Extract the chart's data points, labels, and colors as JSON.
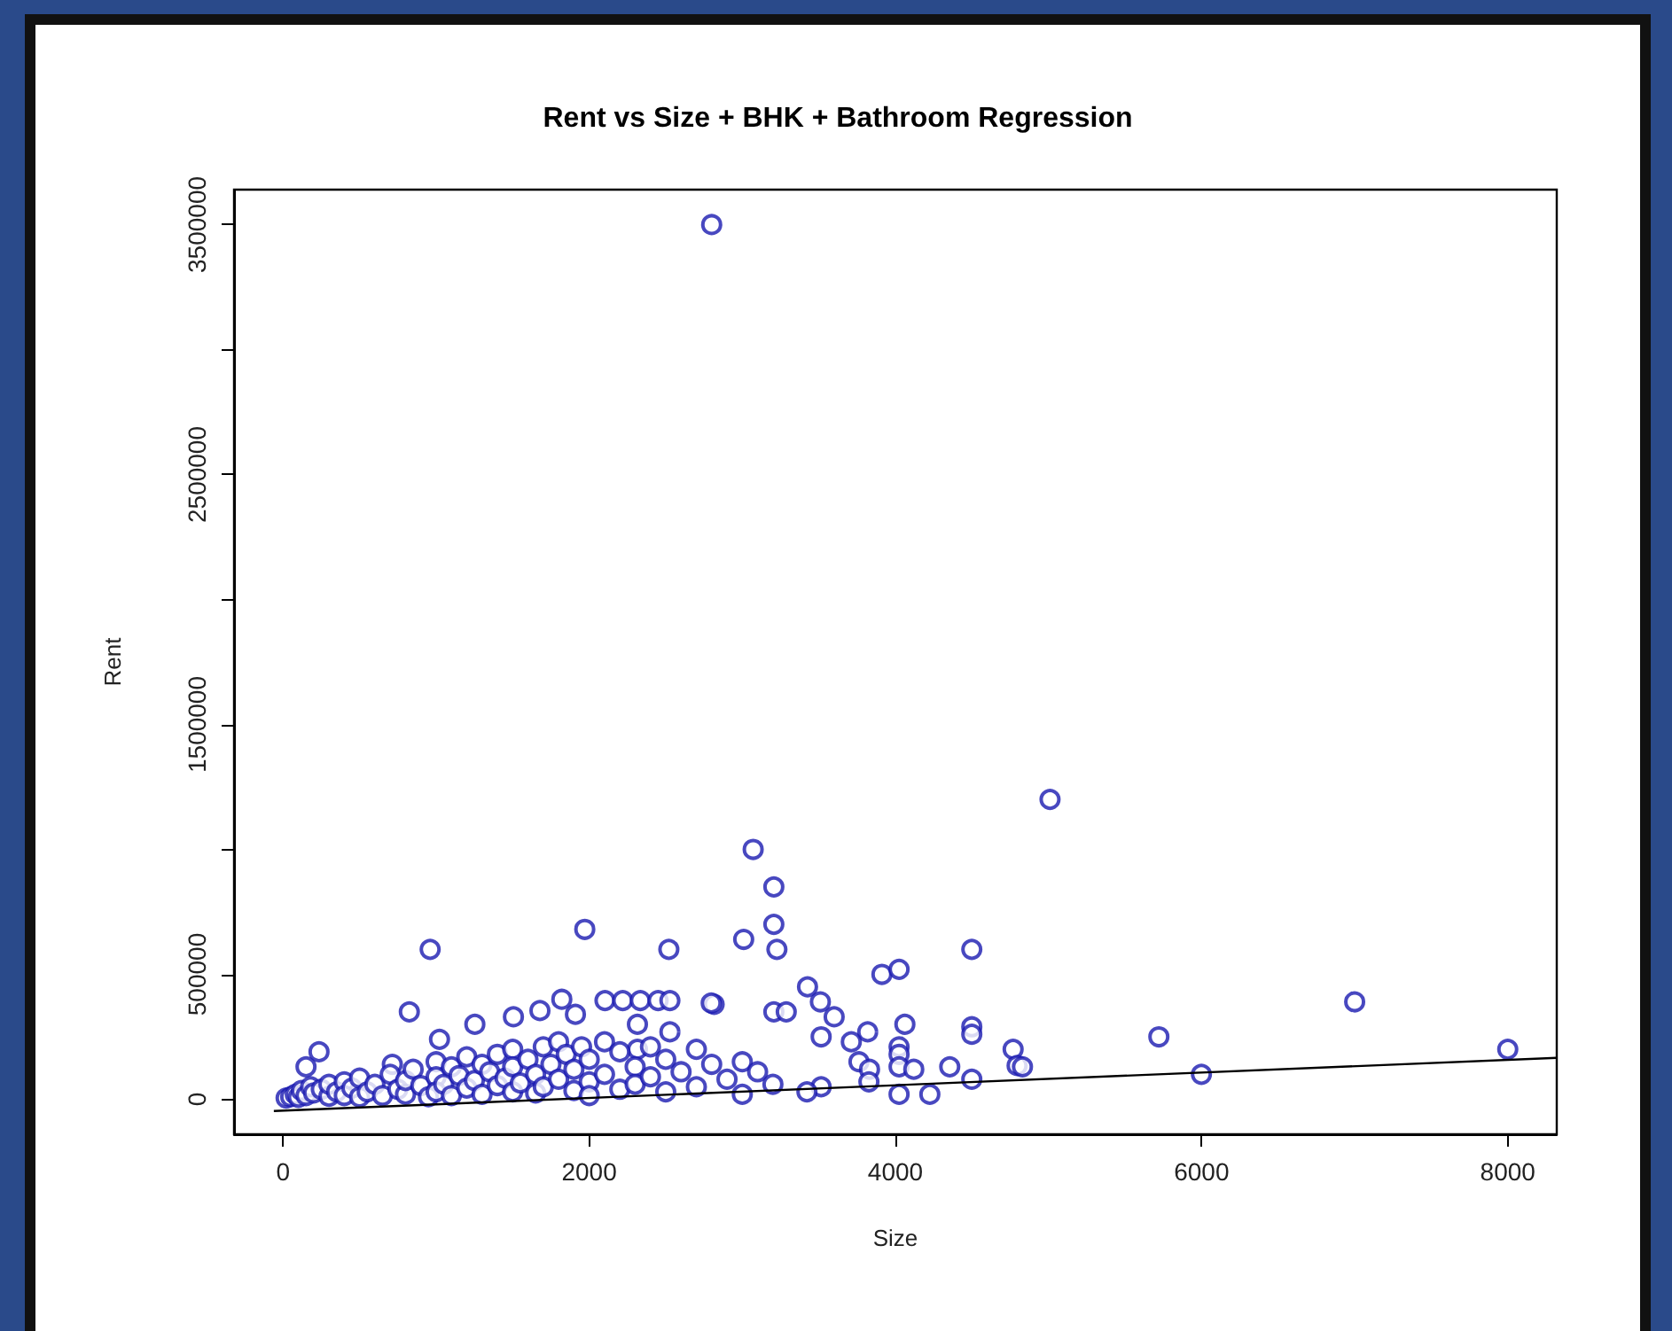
{
  "chart_data": {
    "type": "scatter",
    "title": "Rent vs Size + BHK + Bathroom Regression",
    "xlabel": "Size",
    "ylabel": "Rent",
    "xlim": [
      -320,
      8320
    ],
    "xticks": [
      0,
      2000,
      4000,
      6000,
      8000
    ],
    "ylim": [
      -140000,
      3640000
    ],
    "yticks": [
      0,
      500000,
      {
        "value": 1000000,
        "label": null
      },
      1500000,
      {
        "value": 2000000,
        "label": null
      },
      2500000,
      {
        "value": 3000000,
        "label": null
      },
      3500000
    ],
    "grid": false,
    "marker": "circle",
    "series": [
      {
        "color": "#1a1ab0",
        "x": [
          2800,
          5010,
          3071,
          3206,
          3206,
          3009,
          3226,
          4499,
          3912,
          4024,
          3426,
          3510,
          3600,
          2816,
          3206,
          3287,
          4062,
          3819,
          4499,
          4499,
          3515,
          3712,
          5721,
          4769,
          4795,
          4830,
          4355,
          4024,
          4024,
          4024,
          4120,
          3762,
          3831,
          4499,
          4024,
          4225,
          5999,
          3515,
          3422,
          3827,
          7000,
          8000,
          961,
          1971,
          2520,
          825,
          235,
          150,
          1821,
          2103,
          2219,
          2334,
          2450,
          2527,
          2797,
          1253,
          1505,
          1678,
          1022,
          714,
          2315,
          2315,
          2527,
          1910,
          20,
          50,
          80,
          100,
          120,
          150,
          180,
          200,
          250,
          300,
          300,
          350,
          400,
          400,
          450,
          500,
          500,
          550,
          600,
          650,
          700,
          750,
          800,
          800,
          850,
          900,
          950,
          1000,
          1000,
          1000,
          1050,
          1100,
          1100,
          1150,
          1200,
          1200,
          1250,
          1300,
          1300,
          1350,
          1400,
          1400,
          1450,
          1500,
          1500,
          1500,
          1550,
          1600,
          1650,
          1650,
          1700,
          1700,
          1750,
          1800,
          1800,
          1850,
          1900,
          1900,
          1950,
          2000,
          2000,
          2000,
          2100,
          2100,
          2200,
          2200,
          2300,
          2300,
          2400,
          2400,
          2500,
          2500,
          2600,
          2700,
          2700,
          2800,
          2900,
          3000,
          3000,
          3100,
          3200
        ],
        "values": [
          3500000,
          1200000,
          1000000,
          850000,
          700000,
          640000,
          600000,
          600000,
          500000,
          520000,
          450000,
          390000,
          330000,
          380000,
          350000,
          350000,
          300000,
          270000,
          290000,
          260000,
          250000,
          230000,
          250000,
          200000,
          135000,
          130000,
          130000,
          210000,
          180000,
          130000,
          120000,
          150000,
          120000,
          80000,
          20000,
          20000,
          100000,
          50000,
          30000,
          70000,
          390000,
          200000,
          600000,
          680000,
          600000,
          350000,
          190000,
          130000,
          400000,
          395000,
          395000,
          395000,
          395000,
          395000,
          385000,
          300000,
          330000,
          355000,
          240000,
          140000,
          300000,
          200000,
          270000,
          340000,
          5000,
          10000,
          20000,
          8000,
          35000,
          15000,
          50000,
          25000,
          40000,
          12000,
          60000,
          30000,
          70000,
          15000,
          45000,
          9000,
          85000,
          30000,
          60000,
          15000,
          100000,
          40000,
          20000,
          75000,
          120000,
          55000,
          10000,
          150000,
          90000,
          30000,
          60000,
          130000,
          15000,
          95000,
          170000,
          45000,
          75000,
          140000,
          20000,
          110000,
          180000,
          55000,
          85000,
          200000,
          130000,
          30000,
          65000,
          160000,
          100000,
          25000,
          210000,
          50000,
          140000,
          80000,
          230000,
          180000,
          35000,
          120000,
          210000,
          70000,
          160000,
          15000,
          230000,
          100000,
          40000,
          190000,
          130000,
          60000,
          210000,
          90000,
          30000,
          160000,
          110000,
          50000,
          200000,
          140000,
          80000,
          150000,
          20000,
          110000,
          60000
        ]
      },
      {
        "type": "line",
        "color": "#000000",
        "marker": "none",
        "x": [
          -60,
          8320
        ],
        "values": [
          -47000,
          166000
        ]
      }
    ]
  }
}
